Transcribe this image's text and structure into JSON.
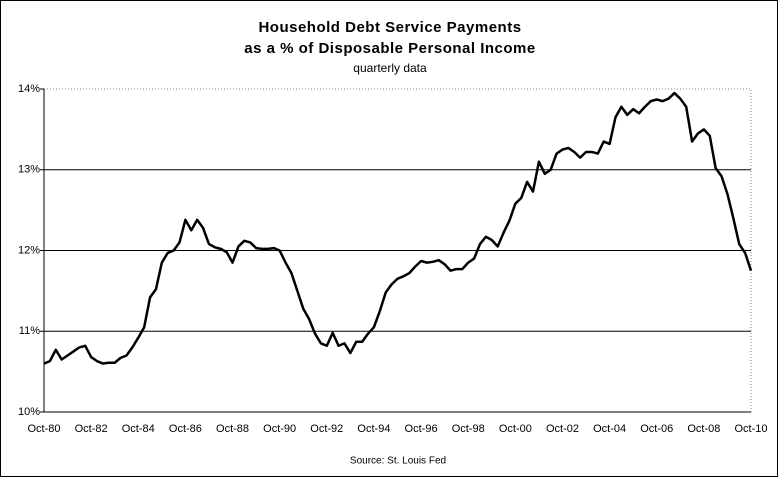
{
  "chart_data": {
    "type": "line",
    "title": [
      "Household Debt Service Payments",
      "as a % of Disposable Personal Income"
    ],
    "subtitle": "quarterly data",
    "source": "Source: St. Louis Fed",
    "categories": [
      "Oct-80",
      null,
      null,
      null,
      null,
      null,
      null,
      null,
      "Oct-82",
      null,
      null,
      null,
      null,
      null,
      null,
      null,
      "Oct-84",
      null,
      null,
      null,
      null,
      null,
      null,
      null,
      "Oct-86",
      null,
      null,
      null,
      null,
      null,
      null,
      null,
      "Oct-88",
      null,
      null,
      null,
      null,
      null,
      null,
      null,
      "Oct-90",
      null,
      null,
      null,
      null,
      null,
      null,
      null,
      "Oct-92",
      null,
      null,
      null,
      null,
      null,
      null,
      null,
      "Oct-94",
      null,
      null,
      null,
      null,
      null,
      null,
      null,
      "Oct-96",
      null,
      null,
      null,
      null,
      null,
      null,
      null,
      "Oct-98",
      null,
      null,
      null,
      null,
      null,
      null,
      null,
      "Oct-00",
      null,
      null,
      null,
      null,
      null,
      null,
      null,
      "Oct-02",
      null,
      null,
      null,
      null,
      null,
      null,
      null,
      "Oct-04",
      null,
      null,
      null,
      null,
      null,
      null,
      null,
      "Oct-06",
      null,
      null,
      null,
      null,
      null,
      null,
      null,
      "Oct-08",
      null,
      null,
      null,
      null,
      null,
      null,
      null,
      "Oct-10"
    ],
    "values": [
      10.6,
      10.63,
      10.77,
      10.65,
      10.7,
      10.75,
      10.8,
      10.82,
      10.68,
      10.63,
      10.6,
      10.61,
      10.61,
      10.67,
      10.7,
      10.8,
      10.92,
      11.05,
      11.42,
      11.52,
      11.85,
      11.97,
      12.0,
      12.1,
      12.38,
      12.25,
      12.38,
      12.28,
      12.08,
      12.04,
      12.02,
      11.98,
      11.85,
      12.05,
      12.12,
      12.1,
      12.03,
      12.02,
      12.02,
      12.03,
      12.0,
      11.85,
      11.72,
      11.5,
      11.28,
      11.15,
      10.97,
      10.85,
      10.82,
      10.98,
      10.82,
      10.85,
      10.73,
      10.87,
      10.87,
      10.97,
      11.05,
      11.25,
      11.48,
      11.58,
      11.65,
      11.68,
      11.72,
      11.8,
      11.87,
      11.85,
      11.86,
      11.88,
      11.83,
      11.75,
      11.77,
      11.77,
      11.85,
      11.9,
      12.08,
      12.17,
      12.13,
      12.05,
      12.22,
      12.37,
      12.58,
      12.65,
      12.85,
      12.73,
      13.1,
      12.95,
      13.0,
      13.2,
      13.25,
      13.27,
      13.22,
      13.15,
      13.22,
      13.22,
      13.2,
      13.35,
      13.32,
      13.65,
      13.78,
      13.68,
      13.75,
      13.7,
      13.78,
      13.85,
      13.87,
      13.85,
      13.88,
      13.95,
      13.88,
      13.78,
      13.35,
      13.45,
      13.5,
      13.42,
      13.02,
      12.92,
      12.7,
      12.4,
      12.08,
      11.97,
      11.75
    ],
    "color": "#000000",
    "ylim": [
      10,
      14
    ],
    "yticks": [
      {
        "value": 10,
        "label": "10%"
      },
      {
        "value": 11,
        "label": "11%"
      },
      {
        "value": 12,
        "label": "12%"
      },
      {
        "value": 13,
        "label": "13%"
      },
      {
        "value": 14,
        "label": "14%"
      }
    ],
    "grid": true
  }
}
